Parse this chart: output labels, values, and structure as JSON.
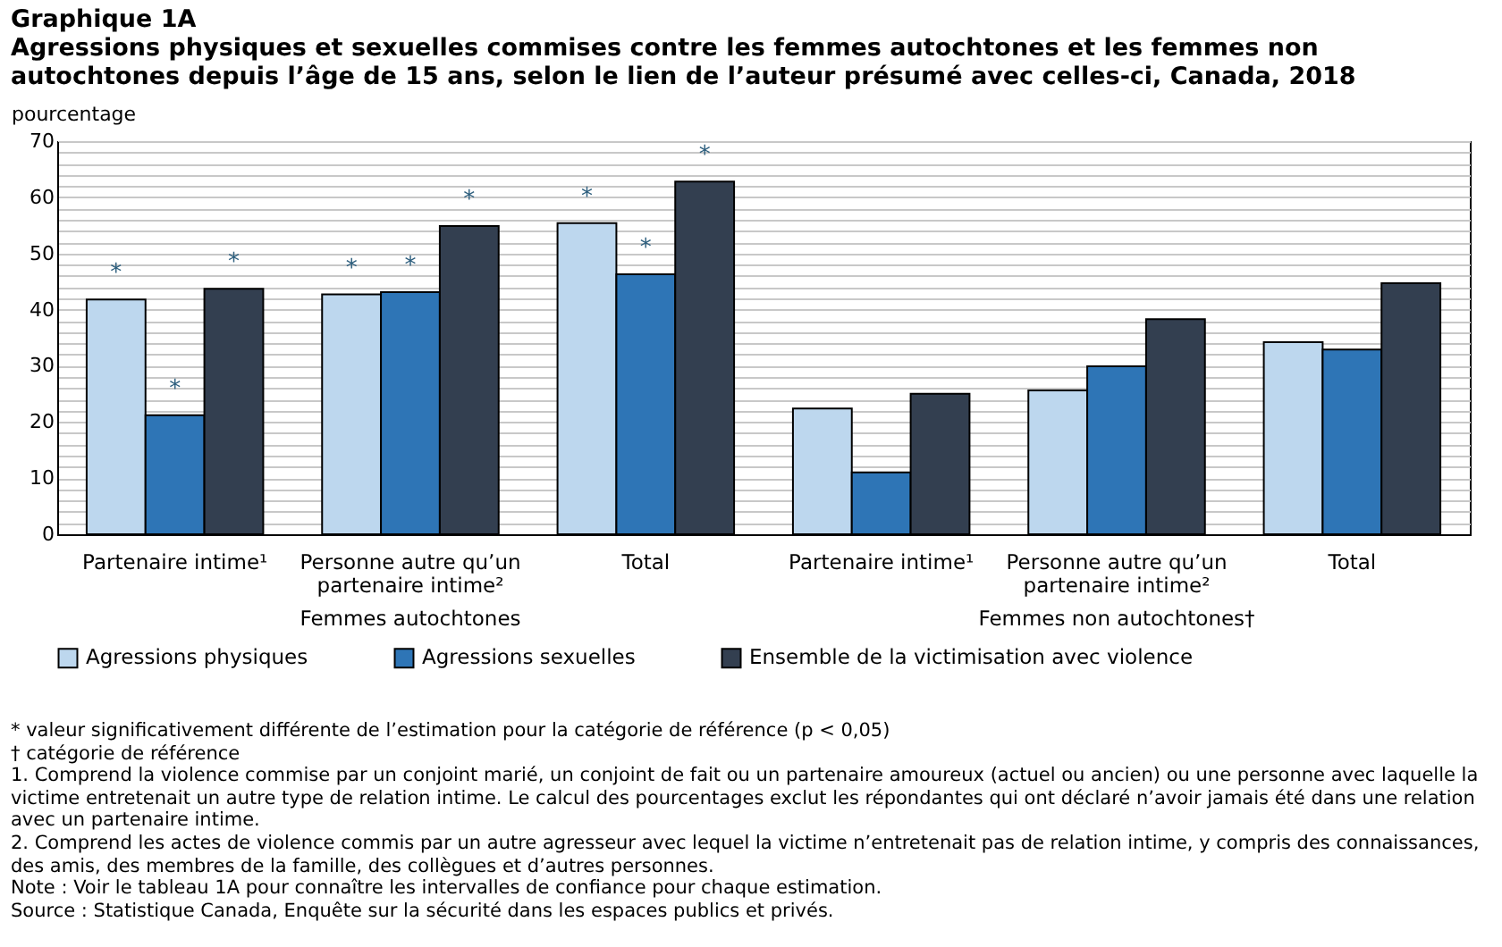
{
  "chart_data": {
    "type": "bar",
    "title": "Graphique 1A",
    "subtitle": "Agressions physiques et sexuelles commises contre les femmes autochtones et les femmes non autochtones depuis l’âge de 15 ans, selon le lien de l’auteur présumé avec celles-ci, Canada, 2018",
    "ylabel": "pourcentage",
    "categories": [
      "Partenaire intime¹",
      "Personne autre qu’un partenaire intime²",
      "Total",
      "Partenaire intime¹",
      "Personne autre qu’un partenaire intime²",
      "Total"
    ],
    "series": [
      {
        "name": "Agressions physiques",
        "color": "#bdd7ee",
        "values": [
          41.8,
          42.7,
          55.4,
          22.4,
          25.6,
          34.2
        ],
        "value_labels": [
          "*",
          "*",
          "*",
          null,
          null,
          null
        ]
      },
      {
        "name": "Agressions sexuelles",
        "color": "#2e75b6",
        "values": [
          21.2,
          43.1,
          46.3,
          11.0,
          29.9,
          32.9
        ],
        "value_labels": [
          "*",
          "*",
          "*",
          null,
          null,
          null
        ]
      },
      {
        "name": "Ensemble de la victimisation avec violence",
        "color": "#333f50",
        "values": [
          43.7,
          54.9,
          62.8,
          25.0,
          38.3,
          44.7
        ],
        "value_labels": [
          "*",
          "*",
          "*",
          null,
          null,
          null
        ]
      }
    ],
    "ylim": [
      0,
      70
    ],
    "yticks": [
      0,
      {
        "value": 2,
        "label": null
      },
      {
        "value": 4,
        "label": null
      },
      {
        "value": 6,
        "label": null
      },
      {
        "value": 8,
        "label": null
      },
      10,
      {
        "value": 12,
        "label": null
      },
      {
        "value": 14,
        "label": null
      },
      {
        "value": 16,
        "label": null
      },
      {
        "value": 18,
        "label": null
      },
      20,
      {
        "value": 22,
        "label": null
      },
      {
        "value": 24,
        "label": null
      },
      {
        "value": 26,
        "label": null
      },
      {
        "value": 28,
        "label": null
      },
      30,
      {
        "value": 32,
        "label": null
      },
      {
        "value": 34,
        "label": null
      },
      {
        "value": 36,
        "label": null
      },
      {
        "value": 38,
        "label": null
      },
      40,
      {
        "value": 42,
        "label": null
      },
      {
        "value": 44,
        "label": null
      },
      {
        "value": 46,
        "label": null
      },
      {
        "value": 48,
        "label": null
      },
      50,
      {
        "value": 52,
        "label": null
      },
      {
        "value": 54,
        "label": null
      },
      {
        "value": 56,
        "label": null
      },
      {
        "value": 58,
        "label": null
      },
      60,
      {
        "value": 62,
        "label": null
      },
      {
        "value": 64,
        "label": null
      },
      {
        "value": 66,
        "label": null
      },
      {
        "value": 68,
        "label": null
      },
      70
    ],
    "grid": "y",
    "legend": "bottom",
    "annotations": [
      "Femmes autochtones",
      "Femmes non autochtones†",
      "* valeur significativement différente de l’estimation pour la catégorie de référence (p < 0,05)",
      "† catégorie de référence",
      "1. Comprend la violence commise par un conjoint marié, un conjoint de fait ou un partenaire amoureux (actuel ou ancien) ou une personne avec laquelle la victime entretenait un autre type de relation intime. Le calcul des pourcentages exclut les répondantes qui ont déclaré n’avoir jamais été dans une relation avec un partenaire intime.",
      "2. Comprend les actes de violence commis par un autre agresseur avec lequel la victime n’entretenait pas de relation intime, y compris des connaissances, des amis, des membres de la famille, des collègues et d’autres personnes.",
      "Note : Voir le tableau 1A pour connaître les intervalles de confiance pour chaque estimation.",
      "Source : Statistique Canada, Enquête sur la sécurité dans les espaces publics et privés."
    ]
  }
}
